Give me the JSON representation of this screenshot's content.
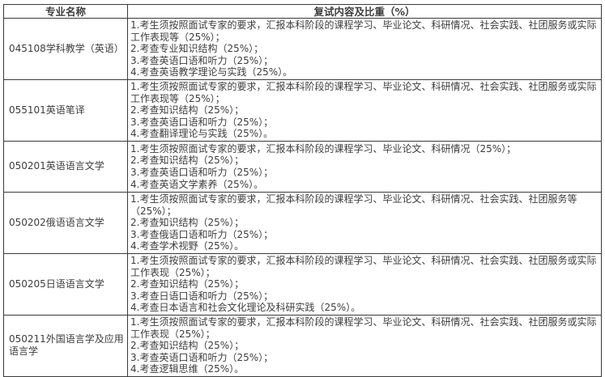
{
  "colors": {
    "border": "#3a3a3a",
    "text": "#3d3d3d",
    "background": "#ffffff"
  },
  "table": {
    "headers": {
      "major": "专业名称",
      "content": "复试内容及比重（%）"
    },
    "rows": [
      {
        "major": "045108学科教学（英语）",
        "items": [
          "1.考生须按照面试专家的要求，汇报本科阶段的课程学习、毕业论文、科研情况、社会实践、社团服务或实际工作表现等（25%）；",
          "2.考查专业知识结构（25%）；",
          "3.考查英语口语和听力（25%）；",
          "4.考查英语教学理论与实践（25%）。"
        ]
      },
      {
        "major": "055101英语笔译",
        "items": [
          "1.考生须按照面试专家的要求，汇报本科阶段的课程学习、毕业论文、科研情况、社会实践、社团服务或实际工作表现等（25%）；",
          "2.考查知识结构（25%）；",
          "3.考查英语口语和听力（25%）；",
          "4.考查翻译理论与实践（25%）。"
        ]
      },
      {
        "major": "050201英语语言文学",
        "items": [
          "1.考生须按照面试专家的要求，汇报本科阶段的课程学习、毕业论文、科研情况（25%）；",
          "2.考查知识结构（25%）；",
          "3.考查英语口语和听力（25%）；",
          "4.考查英语文学素养（25%）。"
        ]
      },
      {
        "major": "050202俄语语言文学",
        "items": [
          "1.考生须按照面试专家的要求，汇报本科阶段的课程学习、毕业论文、科研情况、社会实践、社团服务等（25%）；",
          "2.考查知识结构（25%）；",
          "3.考查俄语口语和听力（25%）；",
          "4.考查学术视野（25%）。"
        ]
      },
      {
        "major": "050205日语语言文学",
        "items": [
          "1.考生须按照面试专家的要求，汇报本科阶段的课程学习、毕业论文、科研情况、社会实践、社团服务或实际工作表现（25%）；",
          "2.考查知识结构（25%）；",
          "3.考查日语口语和听力（25%）；",
          "4.考查日本语言和社会文化理论及科研实践（25%）。"
        ]
      },
      {
        "major": "050211外国语言学及应用语言学",
        "items": [
          "1.考生须按照面试专家的要求，汇报本科阶段的课程学习、毕业论文、科研情况、社会实践、社团服务或实际工作表现（25%）；",
          "2.考查知识结构（25%）；",
          "3.考查英语口语和听力（25%）；",
          "4.考查逻辑思维（25%）。"
        ]
      }
    ]
  }
}
